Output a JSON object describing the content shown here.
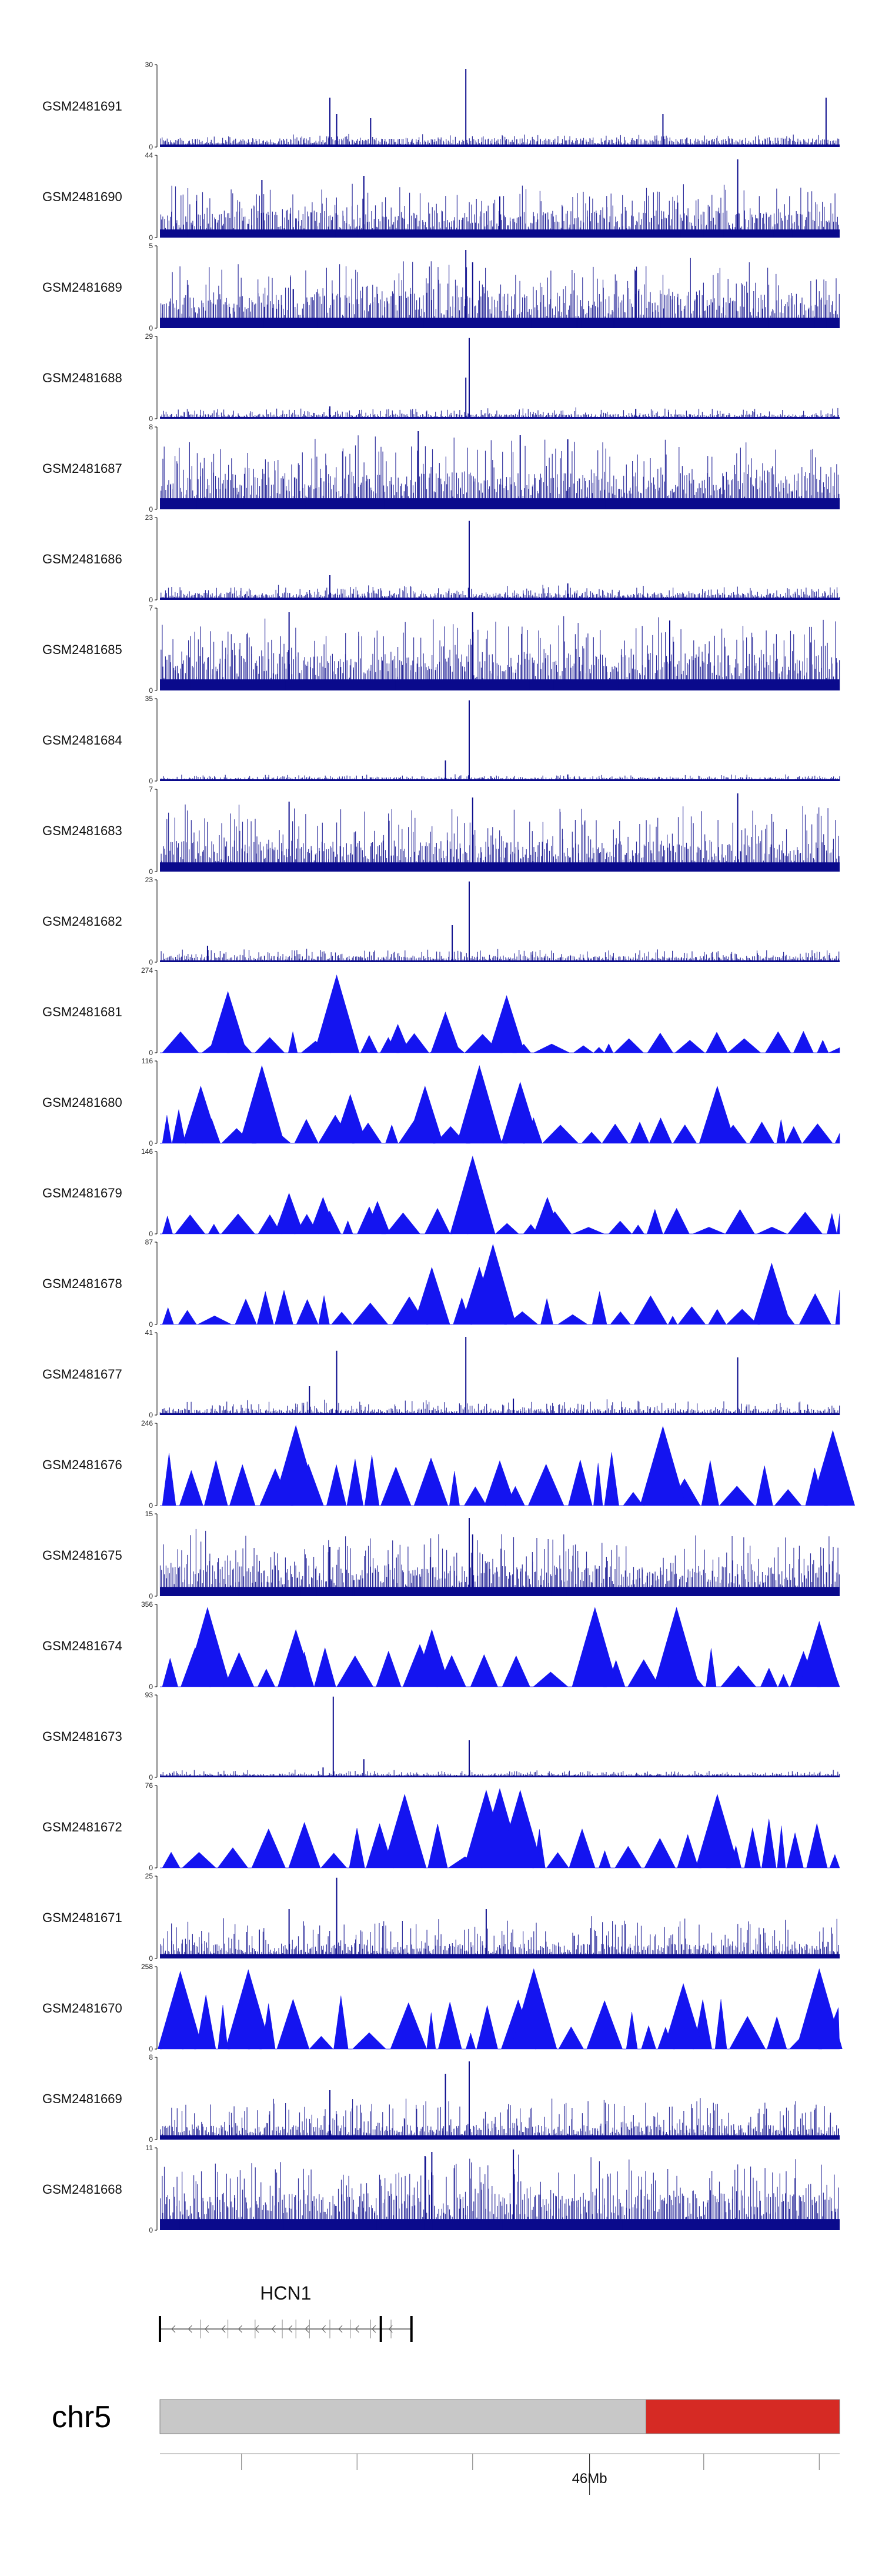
{
  "chart_data": {
    "type": "area",
    "colors": {
      "signal": "#0a0a8c",
      "peaks": "#1414f0",
      "axis": "#000000",
      "ideogram_fill": "#c8c8c8",
      "ideogram_highlight": "#d62a24",
      "ideogram_border": "#808080"
    },
    "tracks": [
      {
        "name": "GSM2481691",
        "ymax": "30",
        "ymin": "0",
        "style": "dense",
        "base": 0.07,
        "noise": 0.06,
        "spikes": [
          [
            0.25,
            0.6
          ],
          [
            0.26,
            0.4
          ],
          [
            0.45,
            0.95
          ],
          [
            0.31,
            0.35
          ],
          [
            0.74,
            0.4
          ],
          [
            0.98,
            0.6
          ]
        ]
      },
      {
        "name": "GSM2481690",
        "ymax": "44",
        "ymin": "0",
        "style": "dense",
        "base": 0.22,
        "noise": 0.35,
        "spikes": [
          [
            0.5,
            0.5
          ],
          [
            0.85,
            0.95
          ],
          [
            0.3,
            0.75
          ],
          [
            0.15,
            0.7
          ]
        ]
      },
      {
        "name": "GSM2481689",
        "ymax": "5",
        "ymin": "0",
        "style": "dense",
        "base": 0.28,
        "noise": 0.45,
        "spikes": [
          [
            0.45,
            0.95
          ],
          [
            0.46,
            0.8
          ],
          [
            0.7,
            0.7
          ]
        ]
      },
      {
        "name": "GSM2481688",
        "ymax": "29",
        "ymin": "0",
        "style": "dense",
        "base": 0.04,
        "noise": 0.08,
        "spikes": [
          [
            0.455,
            0.98
          ],
          [
            0.45,
            0.5
          ],
          [
            0.25,
            0.15
          ],
          [
            0.7,
            0.12
          ]
        ]
      },
      {
        "name": "GSM2481687",
        "ymax": "8",
        "ymin": "0",
        "style": "dense",
        "base": 0.3,
        "noise": 0.5,
        "spikes": [
          [
            0.38,
            0.95
          ],
          [
            0.53,
            0.9
          ],
          [
            0.6,
            0.85
          ]
        ]
      },
      {
        "name": "GSM2481686",
        "ymax": "23",
        "ymin": "0",
        "style": "dense",
        "base": 0.06,
        "noise": 0.1,
        "spikes": [
          [
            0.455,
            0.96
          ],
          [
            0.25,
            0.3
          ],
          [
            0.6,
            0.2
          ]
        ]
      },
      {
        "name": "GSM2481685",
        "ymax": "7",
        "ymin": "0",
        "style": "dense",
        "base": 0.3,
        "noise": 0.5,
        "spikes": [
          [
            0.19,
            0.95
          ],
          [
            0.46,
            0.95
          ],
          [
            0.75,
            0.85
          ]
        ]
      },
      {
        "name": "GSM2481684",
        "ymax": "35",
        "ymin": "0",
        "style": "dense",
        "base": 0.03,
        "noise": 0.04,
        "spikes": [
          [
            0.455,
            0.98
          ],
          [
            0.42,
            0.25
          ],
          [
            0.6,
            0.08
          ]
        ]
      },
      {
        "name": "GSM2481683",
        "ymax": "7",
        "ymin": "0",
        "style": "dense",
        "base": 0.25,
        "noise": 0.5,
        "spikes": [
          [
            0.19,
            0.85
          ],
          [
            0.46,
            0.9
          ],
          [
            0.85,
            0.95
          ]
        ]
      },
      {
        "name": "GSM2481682",
        "ymax": "23",
        "ymin": "0",
        "style": "dense",
        "base": 0.05,
        "noise": 0.1,
        "spikes": [
          [
            0.455,
            0.98
          ],
          [
            0.43,
            0.45
          ],
          [
            0.07,
            0.2
          ]
        ]
      },
      {
        "name": "GSM2481681",
        "ymax": "274",
        "ymin": "0",
        "style": "peaks",
        "peakScale": 0.22,
        "spikes": [
          [
            0.1,
            0.75
          ],
          [
            0.26,
            0.95
          ],
          [
            0.42,
            0.5
          ],
          [
            0.51,
            0.7
          ],
          [
            0.27,
            0.35
          ],
          [
            0.35,
            0.35
          ]
        ]
      },
      {
        "name": "GSM2481680",
        "ymax": "116",
        "ymin": "0",
        "style": "peaks",
        "peakScale": 0.35,
        "spikes": [
          [
            0.06,
            0.7
          ],
          [
            0.15,
            0.95
          ],
          [
            0.47,
            0.95
          ],
          [
            0.53,
            0.75
          ],
          [
            0.39,
            0.7
          ],
          [
            0.82,
            0.7
          ],
          [
            0.28,
            0.6
          ]
        ]
      },
      {
        "name": "GSM2481679",
        "ymax": "146",
        "ymin": "0",
        "style": "peaks",
        "peakScale": 0.28,
        "spikes": [
          [
            0.46,
            0.95
          ],
          [
            0.19,
            0.5
          ],
          [
            0.24,
            0.45
          ],
          [
            0.57,
            0.45
          ],
          [
            0.32,
            0.4
          ]
        ]
      },
      {
        "name": "GSM2481678",
        "ymax": "87",
        "ymin": "0",
        "style": "peaks",
        "peakScale": 0.35,
        "spikes": [
          [
            0.49,
            0.98
          ],
          [
            0.4,
            0.7
          ],
          [
            0.9,
            0.75
          ],
          [
            0.47,
            0.7
          ]
        ]
      },
      {
        "name": "GSM2481677",
        "ymax": "41",
        "ymin": "0",
        "style": "dense",
        "base": 0.05,
        "noise": 0.12,
        "spikes": [
          [
            0.45,
            0.95
          ],
          [
            0.26,
            0.78
          ],
          [
            0.85,
            0.7
          ],
          [
            0.22,
            0.35
          ],
          [
            0.52,
            0.2
          ]
        ]
      },
      {
        "name": "GSM2481676",
        "ymax": "246",
        "ymin": "0",
        "style": "peaks",
        "peakScale": 0.55,
        "spikes": [
          [
            0.2,
            0.98
          ],
          [
            0.74,
            0.97
          ],
          [
            0.99,
            0.92
          ],
          [
            0.5,
            0.55
          ]
        ]
      },
      {
        "name": "GSM2481675",
        "ymax": "15",
        "ymin": "0",
        "style": "dense",
        "base": 0.25,
        "noise": 0.45,
        "spikes": [
          [
            0.455,
            0.95
          ],
          [
            0.46,
            0.75
          ],
          [
            0.25,
            0.6
          ]
        ]
      },
      {
        "name": "GSM2481674",
        "ymax": "356",
        "ymin": "0",
        "style": "peaks",
        "peakScale": 0.45,
        "spikes": [
          [
            0.07,
            0.97
          ],
          [
            0.64,
            0.97
          ],
          [
            0.76,
            0.97
          ],
          [
            0.2,
            0.7
          ],
          [
            0.4,
            0.7
          ],
          [
            0.97,
            0.8
          ]
        ]
      },
      {
        "name": "GSM2481673",
        "ymax": "93",
        "ymin": "0",
        "style": "dense",
        "base": 0.03,
        "noise": 0.05,
        "spikes": [
          [
            0.255,
            0.98
          ],
          [
            0.455,
            0.45
          ],
          [
            0.3,
            0.22
          ],
          [
            0.24,
            0.12
          ]
        ]
      },
      {
        "name": "GSM2481672",
        "ymax": "76",
        "ymin": "0",
        "style": "peaks",
        "peakScale": 0.5,
        "spikes": [
          [
            0.5,
            0.97
          ],
          [
            0.53,
            0.95
          ],
          [
            0.48,
            0.95
          ],
          [
            0.36,
            0.9
          ],
          [
            0.82,
            0.9
          ]
        ]
      },
      {
        "name": "GSM2481671",
        "ymax": "25",
        "ymin": "0",
        "style": "dense",
        "base": 0.12,
        "noise": 0.35,
        "spikes": [
          [
            0.26,
            0.98
          ],
          [
            0.19,
            0.6
          ],
          [
            0.48,
            0.6
          ]
        ]
      },
      {
        "name": "GSM2481670",
        "ymax": "258",
        "ymin": "0",
        "style": "peaks",
        "peakScale": 0.55,
        "spikes": [
          [
            0.03,
            0.95
          ],
          [
            0.13,
            0.97
          ],
          [
            0.55,
            0.98
          ],
          [
            0.97,
            0.98
          ],
          [
            0.77,
            0.8
          ]
        ]
      },
      {
        "name": "GSM2481669",
        "ymax": "8",
        "ymin": "0",
        "style": "dense",
        "base": 0.12,
        "noise": 0.35,
        "spikes": [
          [
            0.455,
            0.95
          ],
          [
            0.42,
            0.8
          ],
          [
            0.25,
            0.6
          ]
        ]
      },
      {
        "name": "GSM2481668",
        "ymax": "11",
        "ymin": "0",
        "style": "dense",
        "base": 0.3,
        "noise": 0.5,
        "spikes": [
          [
            0.4,
            0.95
          ],
          [
            0.52,
            0.98
          ],
          [
            0.39,
            0.9
          ]
        ]
      }
    ],
    "gene": {
      "name": "HCN1",
      "start": 0.0,
      "end": 0.37,
      "exons": [
        0.0,
        0.325,
        0.37
      ]
    },
    "chromosome": {
      "name": "chr5",
      "highlight_start": 0.715,
      "highlight_end": 1.0
    },
    "axis": {
      "label": "46Mb",
      "label_position": 0.632,
      "ticks": [
        0.12,
        0.29,
        0.46,
        0.632,
        0.8,
        0.97
      ]
    }
  }
}
